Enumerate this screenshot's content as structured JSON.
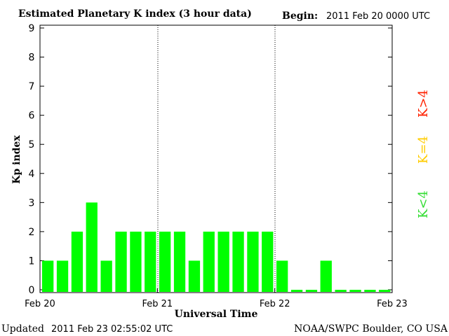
{
  "chart_data": {
    "type": "bar",
    "title": "Estimated Planetary K index (3 hour data)",
    "begin_label": "Begin:",
    "begin_value": "2011 Feb 20 0000 UTC",
    "ylabel": "Kp index",
    "xlabel": "Universal Time",
    "ylim": [
      0,
      9
    ],
    "yticks": [
      "0",
      "1",
      "2",
      "3",
      "4",
      "5",
      "6",
      "7",
      "8",
      "9"
    ],
    "x_day_labels": [
      "Feb 20",
      "Feb 21",
      "Feb 22",
      "Feb 23"
    ],
    "bar_color": "#00ff00",
    "values": [
      1,
      1,
      2,
      3,
      1,
      2,
      2,
      2,
      2,
      2,
      1,
      2,
      2,
      2,
      2,
      2,
      1,
      0,
      0,
      1,
      0,
      0,
      0,
      0
    ],
    "legend": [
      {
        "label": "K<4",
        "color": "#33dd33"
      },
      {
        "label": "K=4",
        "color": "#ffcc00"
      },
      {
        "label": "K>4",
        "color": "#ff2200"
      }
    ]
  },
  "footer": {
    "updated_label": "Updated",
    "updated_value": "2011 Feb 23 02:55:02 UTC",
    "credit": "NOAA/SWPC Boulder, CO USA"
  }
}
